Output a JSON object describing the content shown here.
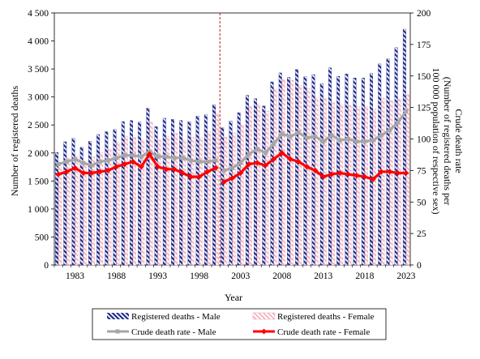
{
  "chart_data": {
    "type": "bar+line",
    "xlabel": "Year",
    "ylabel_left": "Number of registered deaths",
    "ylabel_right_lines": [
      "Crude death rate",
      "(Number of registered deaths per",
      "100 000 population of respective sex)"
    ],
    "left_axis": {
      "min": 0,
      "max": 4500,
      "step": 500,
      "tick_labels": [
        "0",
        "500",
        "1 000",
        "1 500",
        "2 000",
        "2 500",
        "3 000",
        "3 500",
        "4 000",
        "4 500"
      ]
    },
    "right_axis": {
      "min": 0,
      "max": 200,
      "step": 25,
      "tick_labels": [
        "0",
        "25",
        "50",
        "75",
        "100",
        "125",
        "150",
        "175",
        "200"
      ]
    },
    "x_tick_labels": [
      "1983",
      "1988",
      "1993",
      "1998",
      "2003",
      "2008",
      "2013",
      "2018",
      "2023"
    ],
    "x": [
      1981,
      1982,
      1983,
      1984,
      1985,
      1986,
      1987,
      1988,
      1989,
      1990,
      1991,
      1992,
      1993,
      1994,
      1995,
      1996,
      1997,
      1998,
      1999,
      2000,
      2001,
      2002,
      2003,
      2004,
      2005,
      2006,
      2007,
      2008,
      2009,
      2010,
      2011,
      2012,
      2013,
      2014,
      2015,
      2016,
      2017,
      2018,
      2019,
      2020,
      2021,
      2022,
      2023
    ],
    "break_after_year": 2000,
    "series": [
      {
        "name": "Registered deaths - Male",
        "kind": "bar",
        "axis": "left",
        "color": "#1f2a8a",
        "values": [
          2010,
          2200,
          2260,
          2100,
          2210,
          2330,
          2380,
          2420,
          2560,
          2580,
          2550,
          2800,
          2470,
          2620,
          2600,
          2580,
          2560,
          2660,
          2680,
          2860,
          2450,
          2570,
          2720,
          3030,
          2970,
          2840,
          3270,
          3430,
          3350,
          3490,
          3360,
          3400,
          3240,
          3520,
          3370,
          3410,
          3340,
          3340,
          3420,
          3590,
          3680,
          3880,
          4210
        ]
      },
      {
        "name": "Registered deaths - Female",
        "kind": "bar",
        "axis": "left",
        "color": "#ffb6c1",
        "values": [
          1750,
          1910,
          1950,
          1830,
          1930,
          2010,
          2060,
          2190,
          2300,
          2280,
          2230,
          2550,
          2230,
          2300,
          2350,
          2230,
          2280,
          2280,
          2380,
          2700,
          2280,
          2360,
          2500,
          2830,
          2870,
          2750,
          3140,
          3310,
          3300,
          3210,
          3150,
          2990,
          2970,
          2900,
          2870,
          2850,
          2830,
          2830,
          2790,
          2980,
          2930,
          2960,
          3040
        ]
      },
      {
        "name": "Crude death rate - Male",
        "kind": "line",
        "axis": "right",
        "color": "#a6a6a6",
        "values": [
          80,
          82,
          84,
          81,
          79,
          82,
          83,
          85,
          87,
          87,
          86,
          90,
          86,
          86,
          85,
          85,
          83,
          82,
          82,
          83,
          75,
          77,
          81,
          88,
          92,
          89,
          96,
          104,
          102,
          105,
          101,
          102,
          98,
          103,
          99,
          100,
          98,
          98,
          99,
          103,
          107,
          113,
          122
        ]
      },
      {
        "name": "Crude death rate - Female",
        "kind": "line",
        "axis": "right",
        "color": "#ff0000",
        "values": [
          72,
          74,
          77,
          73,
          73,
          74,
          75,
          78,
          80,
          82,
          78,
          88,
          78,
          76,
          76,
          73,
          70,
          70,
          74,
          77,
          66,
          69,
          73,
          80,
          81,
          79,
          84,
          89,
          84,
          82,
          78,
          75,
          70,
          72,
          73,
          72,
          71,
          70,
          68,
          74,
          74,
          73,
          73
        ]
      }
    ],
    "legend": {
      "placement": "bottom",
      "items": [
        "Registered deaths - Male",
        "Registered deaths - Female",
        "Crude death rate - Male",
        "Crude death rate - Female"
      ]
    }
  }
}
